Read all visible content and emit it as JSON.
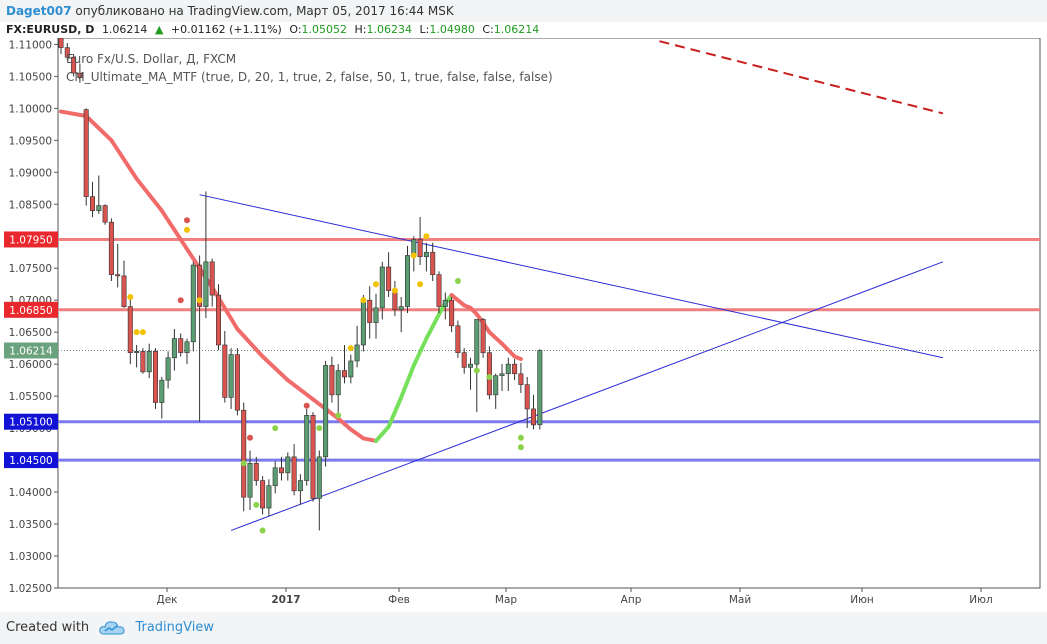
{
  "header": {
    "user": "Daget007",
    "published": "опубликовано на TradingView.com, Март 05, 2017 16:44 MSK"
  },
  "quote": {
    "symbol": "FX:EURUSD, D",
    "last": "1.06214",
    "change": "+0.01162 (+1.11%)",
    "o_label": "O:",
    "o": "1.05052",
    "h_label": "H:",
    "h": "1.06234",
    "l_label": "L:",
    "l": "1.04980",
    "c_label": "C:",
    "c": "1.06214",
    "arrow_icon": "triangle-up-icon"
  },
  "legend": {
    "title": "Euro Fx/U.S. Dollar, Д, FXCM",
    "indicator": "CM_Ultimate_MA_MTF (true, D, 20, 1, true, 2, false, 50, 1, true, false, false, false)"
  },
  "footer": {
    "created_with": "Created with",
    "brand": "TradingView",
    "logo_icon": "tradingview-cloud-icon"
  },
  "colors": {
    "bull": "#5b9c72",
    "bear": "#d9534f",
    "ma_down": "#f26b6b",
    "ma_up": "#77e05a",
    "resistance": "#f08080",
    "support": "#7b7bef",
    "trendline": "#2b2bd6",
    "dashed": "#c81e1e"
  },
  "chart_data": {
    "type": "candlestick",
    "ylim": [
      1.025,
      1.111
    ],
    "y_ticks": [
      "1.02500",
      "1.03000",
      "1.03500",
      "1.04000",
      "1.04500",
      "1.05000",
      "1.05500",
      "1.06000",
      "1.06500",
      "1.07000",
      "1.07500",
      "1.08000",
      "1.08500",
      "1.09000",
      "1.09500",
      "1.10000",
      "1.10500",
      "1.11000"
    ],
    "x_ticks": [
      "Дек",
      "2017",
      "Фев",
      "Мар",
      "Апр",
      "Май",
      "Июн",
      "Июл"
    ],
    "last_price_label": "1.06214",
    "horizontal_levels": [
      {
        "label": "1.07950",
        "value": 1.0795,
        "kind": "resistance"
      },
      {
        "label": "1.06850",
        "value": 1.0685,
        "kind": "resistance"
      },
      {
        "label": "1.05100",
        "value": 1.051,
        "kind": "support"
      },
      {
        "label": "1.04500",
        "value": 1.045,
        "kind": "support"
      }
    ],
    "candles": [
      [
        1.111,
        1.1115,
        1.1085,
        1.1095
      ],
      [
        1.1095,
        1.1102,
        1.1075,
        1.108
      ],
      [
        1.108,
        1.1085,
        1.105,
        1.1055
      ],
      [
        1.1055,
        1.107,
        1.104,
        1.1048
      ],
      [
        1.0998,
        1.1,
        1.0848,
        1.0862
      ],
      [
        1.0862,
        1.0885,
        1.083,
        1.084
      ],
      [
        1.084,
        1.0895,
        1.0835,
        1.0848
      ],
      [
        1.0848,
        1.085,
        1.0818,
        1.0822
      ],
      [
        1.0822,
        1.0828,
        1.073,
        1.074
      ],
      [
        1.074,
        1.0788,
        1.072,
        1.0738
      ],
      [
        1.0738,
        1.0762,
        1.0688,
        1.069
      ],
      [
        1.069,
        1.0708,
        1.06,
        1.0618
      ],
      [
        1.0618,
        1.063,
        1.0595,
        1.062
      ],
      [
        1.062,
        1.0625,
        1.0585,
        1.0588
      ],
      [
        1.0588,
        1.0632,
        1.0578,
        1.062
      ],
      [
        1.062,
        1.0625,
        1.053,
        1.054
      ],
      [
        1.054,
        1.058,
        1.0515,
        1.0575
      ],
      [
        1.0575,
        1.062,
        1.0562,
        1.061
      ],
      [
        1.061,
        1.0655,
        1.059,
        1.064
      ],
      [
        1.064,
        1.0648,
        1.0612,
        1.0618
      ],
      [
        1.0618,
        1.064,
        1.06,
        1.0635
      ],
      [
        1.0635,
        1.076,
        1.062,
        1.0755
      ],
      [
        1.0755,
        1.077,
        1.051,
        1.069
      ],
      [
        1.069,
        1.087,
        1.0672,
        1.076
      ],
      [
        1.076,
        1.0765,
        1.069,
        1.0708
      ],
      [
        1.0708,
        1.0725,
        1.0622,
        1.063
      ],
      [
        1.063,
        1.0652,
        1.054,
        1.0548
      ],
      [
        1.0548,
        1.0625,
        1.053,
        1.0615
      ],
      [
        1.0615,
        1.0625,
        1.052,
        1.0528
      ],
      [
        1.0528,
        1.054,
        1.037,
        1.0392
      ],
      [
        1.0392,
        1.0465,
        1.0372,
        1.0445
      ],
      [
        1.0445,
        1.0455,
        1.041,
        1.0418
      ],
      [
        1.0418,
        1.0425,
        1.0365,
        1.0375
      ],
      [
        1.0375,
        1.042,
        1.0362,
        1.041
      ],
      [
        1.041,
        1.0448,
        1.0398,
        1.0438
      ],
      [
        1.0438,
        1.0455,
        1.0418,
        1.043
      ],
      [
        1.043,
        1.0462,
        1.0418,
        1.0455
      ],
      [
        1.0455,
        1.0475,
        1.0395,
        1.0402
      ],
      [
        1.0402,
        1.0428,
        1.038,
        1.0418
      ],
      [
        1.0418,
        1.053,
        1.041,
        1.052
      ],
      [
        1.052,
        1.0525,
        1.0385,
        1.039
      ],
      [
        1.039,
        1.0465,
        1.034,
        1.0455
      ],
      [
        1.0455,
        1.0605,
        1.044,
        1.0598
      ],
      [
        1.0598,
        1.0612,
        1.054,
        1.0552
      ],
      [
        1.0552,
        1.06,
        1.052,
        1.059
      ],
      [
        1.059,
        1.063,
        1.057,
        1.058
      ],
      [
        1.058,
        1.0615,
        1.057,
        1.0605
      ],
      [
        1.0605,
        1.066,
        1.0595,
        1.063
      ],
      [
        1.063,
        1.0708,
        1.062,
        1.07
      ],
      [
        1.07,
        1.0722,
        1.064,
        1.0665
      ],
      [
        1.0665,
        1.071,
        1.064,
        1.0688
      ],
      [
        1.0688,
        1.076,
        1.067,
        1.0752
      ],
      [
        1.0752,
        1.0775,
        1.0705,
        1.0715
      ],
      [
        1.0715,
        1.073,
        1.0675,
        1.0685
      ],
      [
        1.0685,
        1.0705,
        1.065,
        1.069
      ],
      [
        1.069,
        1.0785,
        1.068,
        1.077
      ],
      [
        1.077,
        1.08,
        1.0745,
        1.0795
      ],
      [
        1.0795,
        1.083,
        1.0755,
        1.0768
      ],
      [
        1.0768,
        1.079,
        1.0745,
        1.0775
      ],
      [
        1.0775,
        1.079,
        1.073,
        1.074
      ],
      [
        1.074,
        1.0745,
        1.068,
        1.069
      ],
      [
        1.069,
        1.0712,
        1.067,
        1.07
      ],
      [
        1.07,
        1.0705,
        1.065,
        1.066
      ],
      [
        1.066,
        1.0668,
        1.061,
        1.0618
      ],
      [
        1.0618,
        1.0625,
        1.0585,
        1.0595
      ],
      [
        1.0595,
        1.061,
        1.056,
        1.06
      ],
      [
        1.06,
        1.0668,
        1.0525,
        1.067
      ],
      [
        1.067,
        1.0672,
        1.061,
        1.0618
      ],
      [
        1.0618,
        1.0628,
        1.0545,
        1.0552
      ],
      [
        1.0552,
        1.0585,
        1.053,
        1.0582
      ],
      [
        1.0582,
        1.06,
        1.0558,
        1.0585
      ],
      [
        1.0585,
        1.061,
        1.0558,
        1.06
      ],
      [
        1.06,
        1.0608,
        1.0575,
        1.0585
      ],
      [
        1.0585,
        1.0602,
        1.0555,
        1.0568
      ],
      [
        1.0568,
        1.058,
        1.05,
        1.053
      ],
      [
        1.053,
        1.0552,
        1.0498,
        1.0505
      ],
      [
        1.05052,
        1.06234,
        1.0498,
        1.06214
      ]
    ],
    "ma": [
      [
        0,
        1.0995
      ],
      [
        4,
        1.0988
      ],
      [
        8,
        1.095
      ],
      [
        12,
        1.089
      ],
      [
        16,
        1.084
      ],
      [
        20,
        1.078
      ],
      [
        24,
        1.072
      ],
      [
        28,
        1.0655
      ],
      [
        32,
        1.0612
      ],
      [
        36,
        1.0575
      ],
      [
        40,
        1.0545
      ],
      [
        44,
        1.0515
      ],
      [
        46,
        1.0498
      ],
      [
        48,
        1.0484
      ],
      [
        50,
        1.048
      ],
      [
        52,
        1.0502
      ],
      [
        54,
        1.0548
      ],
      [
        56,
        1.0598
      ],
      [
        58,
        1.064
      ],
      [
        60,
        1.0678
      ],
      [
        61,
        1.0695
      ],
      [
        62,
        1.0708
      ],
      [
        63,
        1.07
      ],
      [
        64,
        1.0692
      ],
      [
        65,
        1.0688
      ],
      [
        66,
        1.0678
      ],
      [
        67,
        1.0665
      ],
      [
        68,
        1.065
      ],
      [
        70,
        1.0632
      ],
      [
        72,
        1.0612
      ],
      [
        73,
        1.0608
      ]
    ],
    "trendlines": [
      {
        "from": [
          22,
          1.0865
        ],
        "to": [
          140,
          1.061
        ],
        "style": "solid"
      },
      {
        "from": [
          27,
          1.034
        ],
        "to": [
          140,
          1.076
        ],
        "style": "solid"
      },
      {
        "from": [
          95,
          1.1105
        ],
        "to": [
          140,
          1.0992
        ],
        "style": "dashed"
      }
    ],
    "dots": [
      [
        20,
        1.0825,
        "bear"
      ],
      [
        20,
        1.081,
        "bull"
      ],
      [
        22,
        1.07,
        "bull"
      ],
      [
        19,
        1.07,
        "bear"
      ],
      [
        13,
        1.065,
        "bull"
      ],
      [
        11,
        1.0705,
        "bull"
      ],
      [
        12,
        1.065,
        "bull"
      ],
      [
        29,
        1.0445,
        "bull"
      ],
      [
        30,
        1.0485,
        "bear"
      ],
      [
        31,
        1.038,
        "bull"
      ],
      [
        32,
        1.034,
        "bull"
      ],
      [
        34,
        1.05,
        "bull"
      ],
      [
        39,
        1.0535,
        "bear"
      ],
      [
        41,
        1.05,
        "bull"
      ],
      [
        44,
        1.052,
        "bull"
      ],
      [
        46,
        1.0625,
        "bull"
      ],
      [
        48,
        1.07,
        "bull"
      ],
      [
        50,
        1.0725,
        "bull"
      ],
      [
        53,
        1.0715,
        "bull"
      ],
      [
        56,
        1.077,
        "bull"
      ],
      [
        57,
        1.0725,
        "bull"
      ],
      [
        58,
        1.08,
        "bull"
      ],
      [
        63,
        1.073,
        "bull"
      ],
      [
        66,
        1.059,
        "bull"
      ],
      [
        68,
        1.058,
        "bull"
      ],
      [
        73,
        1.0485,
        "bull"
      ],
      [
        73,
        1.047,
        "bull"
      ]
    ]
  }
}
